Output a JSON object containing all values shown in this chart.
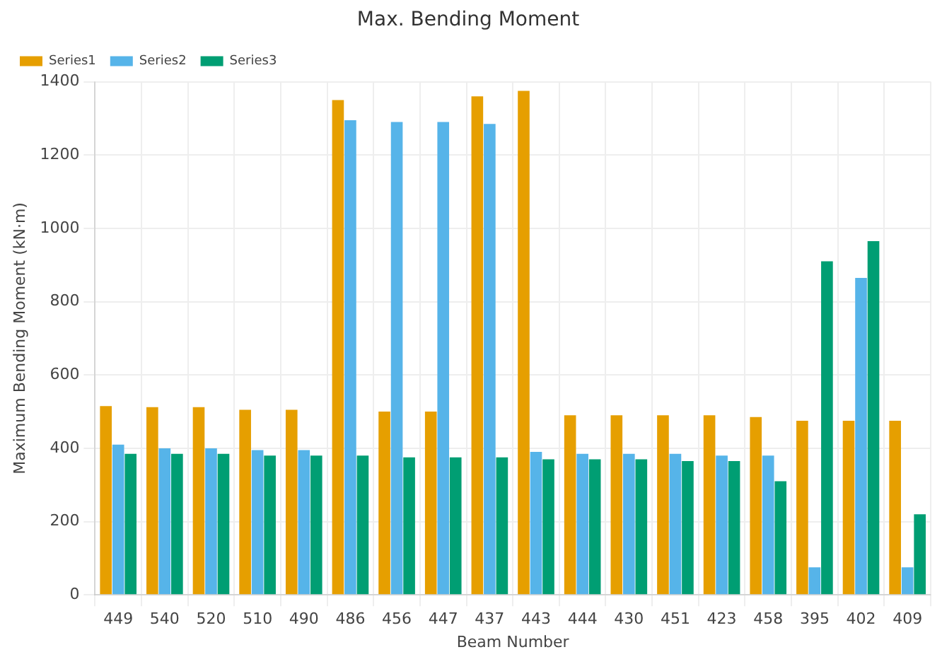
{
  "chart_data": {
    "type": "bar",
    "title": "Max. Bending Moment",
    "xlabel": "Beam Number",
    "ylabel": "Maximum Bending Moment (kN·m)",
    "categories": [
      "449",
      "540",
      "520",
      "510",
      "490",
      "486",
      "456",
      "447",
      "437",
      "443",
      "444",
      "430",
      "451",
      "423",
      "458",
      "395",
      "402",
      "409"
    ],
    "series": [
      {
        "name": "Series1",
        "color": "#e69f00",
        "values": [
          515,
          512,
          512,
          505,
          505,
          1350,
          500,
          500,
          1360,
          1375,
          490,
          490,
          490,
          490,
          485,
          475,
          475,
          475
        ]
      },
      {
        "name": "Series2",
        "color": "#56b4e9",
        "values": [
          410,
          400,
          400,
          395,
          395,
          1295,
          1290,
          1290,
          1285,
          390,
          385,
          385,
          385,
          380,
          380,
          75,
          865,
          75
        ]
      },
      {
        "name": "Series3",
        "color": "#009e73",
        "values": [
          385,
          385,
          385,
          380,
          380,
          380,
          375,
          375,
          375,
          370,
          370,
          370,
          365,
          365,
          310,
          910,
          965,
          220
        ]
      }
    ],
    "ylim": [
      0,
      1400
    ],
    "yticks": [
      0,
      200,
      400,
      600,
      800,
      1000,
      1200,
      1400
    ],
    "grid": true,
    "legend": "top left"
  }
}
